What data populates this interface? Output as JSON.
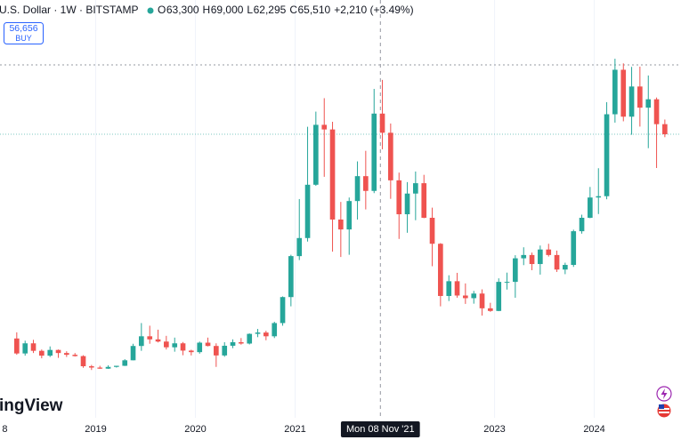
{
  "chart_data": {
    "type": "candlestick",
    "title": "U.S. Dollar · 1W · BITSTAMP",
    "ohlc_legend": [
      {
        "key": "O",
        "value": "63,300"
      },
      {
        "key": "H",
        "value": "69,000"
      },
      {
        "key": "L",
        "value": "62,295"
      },
      {
        "key": "C",
        "value": "65,510"
      }
    ],
    "change": "+2,210 (+3.49%)",
    "buy_box": {
      "price": "56,656",
      "action": "BUY"
    },
    "current_price": 56656,
    "crosshair": {
      "x": 2021.855,
      "y": 72400,
      "label": "Mon 08 Nov '21"
    },
    "watermark": "ingView",
    "up_color": "#26a69a",
    "down_color": "#ef5350",
    "grid": true,
    "xlim": [
      2018.04,
      2024.87
    ],
    "ylim": [
      -7700,
      83100
    ],
    "xticks": [
      {
        "value": 2018,
        "label": "8"
      },
      2019,
      2020,
      2021,
      2023,
      2024
    ],
    "x": [
      2018.208,
      2018.292,
      2018.375,
      2018.458,
      2018.542,
      2018.625,
      2018.708,
      2018.792,
      2018.875,
      2018.958,
      2019.042,
      2019.125,
      2019.208,
      2019.292,
      2019.375,
      2019.458,
      2019.542,
      2019.625,
      2019.708,
      2019.792,
      2019.875,
      2019.958,
      2020.042,
      2020.125,
      2020.208,
      2020.292,
      2020.375,
      2020.458,
      2020.542,
      2020.625,
      2020.708,
      2020.792,
      2020.875,
      2020.958,
      2021.042,
      2021.125,
      2021.208,
      2021.292,
      2021.375,
      2021.458,
      2021.542,
      2021.625,
      2021.708,
      2021.792,
      2021.875,
      2021.958,
      2022.042,
      2022.125,
      2022.208,
      2022.292,
      2022.375,
      2022.458,
      2022.542,
      2022.625,
      2022.708,
      2022.792,
      2022.875,
      2022.958,
      2023.042,
      2023.125,
      2023.208,
      2023.292,
      2023.375,
      2023.458,
      2023.542,
      2023.625,
      2023.708,
      2023.792,
      2023.875,
      2023.958,
      2024.042,
      2024.125,
      2024.208,
      2024.292,
      2024.375,
      2024.458,
      2024.542,
      2024.625,
      2024.708
    ],
    "open": [
      10300,
      6900,
      9200,
      7500,
      6400,
      7700,
      7000,
      6600,
      6300,
      4000,
      3700,
      3450,
      3850,
      4100,
      5350,
      8600,
      10800,
      10100,
      9600,
      8300,
      9200,
      7550,
      7200,
      9350,
      8600,
      6450,
      8650,
      9450,
      9150,
      11350,
      11650,
      10800,
      13800,
      19700,
      29000,
      33100,
      45200,
      58800,
      57750,
      37300,
      35050,
      41500,
      47150,
      43800,
      61350,
      57000,
      46200,
      38500,
      43200,
      45550,
      37700,
      31800,
      19950,
      23300,
      20050,
      19450,
      20500,
      17150,
      16550,
      23150,
      23150,
      28500,
      29250,
      27200,
      30500,
      29250,
      25950,
      27000,
      34650,
      37700,
      42300,
      42600,
      61200,
      71300,
      60650,
      67500,
      62700,
      64600,
      58950
    ],
    "high": [
      11700,
      9800,
      10000,
      7800,
      8500,
      7800,
      7400,
      7000,
      6500,
      4300,
      4100,
      4200,
      4100,
      5600,
      9100,
      13800,
      13200,
      12300,
      10900,
      10500,
      9500,
      7750,
      9600,
      10500,
      9200,
      9450,
      10100,
      10400,
      11450,
      12470,
      12050,
      14100,
      19850,
      29300,
      41950,
      58350,
      61800,
      64850,
      59500,
      41300,
      42300,
      50500,
      52900,
      66950,
      69000,
      59100,
      47950,
      45800,
      48200,
      47450,
      40000,
      31950,
      24650,
      25200,
      22800,
      21100,
      21450,
      18400,
      23950,
      25250,
      29200,
      31000,
      29800,
      31400,
      31800,
      30250,
      27500,
      35000,
      38400,
      44700,
      48950,
      63950,
      73800,
      72750,
      71950,
      72000,
      70000,
      65000,
      60000
    ],
    "low": [
      6600,
      6400,
      7000,
      5800,
      6100,
      5900,
      6100,
      6200,
      3650,
      3150,
      3400,
      3400,
      3700,
      4050,
      5350,
      7500,
      9100,
      9400,
      7800,
      7300,
      6500,
      6450,
      6850,
      8500,
      3850,
      6150,
      8100,
      8900,
      8950,
      10600,
      9900,
      10400,
      13200,
      17600,
      28100,
      32300,
      44950,
      47000,
      30000,
      28800,
      29300,
      37300,
      39600,
      43300,
      53250,
      42000,
      32900,
      34300,
      37150,
      37600,
      26700,
      17600,
      18800,
      19550,
      18150,
      18200,
      15500,
      16350,
      16500,
      21400,
      19550,
      26950,
      25800,
      24800,
      28900,
      25400,
      24900,
      26550,
      34100,
      37600,
      38550,
      41900,
      59300,
      59600,
      56550,
      58400,
      53500,
      49000,
      56000
    ],
    "close": [
      6900,
      9200,
      7500,
      6400,
      7700,
      7000,
      6600,
      6300,
      4000,
      3700,
      3450,
      3850,
      4100,
      5350,
      8600,
      10800,
      10100,
      9600,
      8300,
      9200,
      7550,
      7200,
      9350,
      8600,
      6450,
      8650,
      9450,
      9150,
      11350,
      11650,
      10800,
      13800,
      19700,
      29000,
      33100,
      45200,
      58800,
      57750,
      37300,
      35050,
      41500,
      47150,
      43800,
      61350,
      57000,
      46200,
      38500,
      43200,
      45550,
      37700,
      31800,
      19950,
      23300,
      20050,
      19450,
      20500,
      17150,
      16550,
      23150,
      23150,
      28500,
      29250,
      27200,
      30500,
      29250,
      25950,
      27000,
      34650,
      37700,
      42300,
      42600,
      61200,
      71300,
      60650,
      67500,
      62700,
      64600,
      58950,
      56656
    ]
  }
}
